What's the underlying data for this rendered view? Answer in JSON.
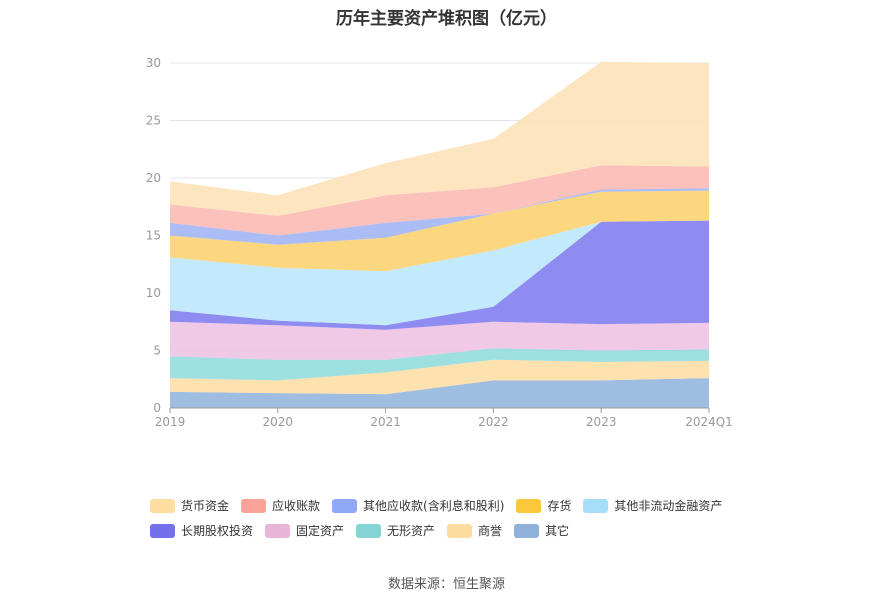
{
  "title": "历年主要资产堆积图（亿元）",
  "source": "数据来源：恒生聚源",
  "chart_data": {
    "type": "area",
    "stacked": true,
    "title": "历年主要资产堆积图（亿元）",
    "categories": [
      "2019",
      "2020",
      "2021",
      "2022",
      "2023",
      "2024Q1"
    ],
    "ylim": [
      0,
      30
    ],
    "y_ticks": [
      0,
      5,
      10,
      15,
      20,
      25,
      30
    ],
    "grid": true,
    "legend_position": "bottom",
    "series": [
      {
        "name": "其它",
        "color": "#8eb0dc",
        "values": [
          1.4,
          1.3,
          1.2,
          2.4,
          2.4,
          2.6
        ]
      },
      {
        "name": "商誉",
        "color": "#fddca0",
        "values": [
          1.2,
          1.1,
          1.9,
          1.8,
          1.6,
          1.5
        ]
      },
      {
        "name": "无形资产",
        "color": "#8dd9d9",
        "values": [
          1.9,
          1.8,
          1.1,
          1.0,
          1.0,
          1.0
        ]
      },
      {
        "name": "固定资产",
        "color": "#ecbfe0",
        "values": [
          3.0,
          3.0,
          2.6,
          2.3,
          2.3,
          2.3
        ]
      },
      {
        "name": "长期股权投资",
        "color": "#7b78ee",
        "values": [
          1.0,
          0.4,
          0.4,
          1.3,
          8.9,
          8.9
        ]
      },
      {
        "name": "其他非流动金融资产",
        "color": "#b9e6fb",
        "values": [
          4.6,
          4.6,
          4.7,
          4.9,
          0.0,
          0.0
        ]
      },
      {
        "name": "存货",
        "color": "#fdd068",
        "values": [
          1.9,
          2.0,
          2.9,
          3.2,
          2.6,
          2.6
        ]
      },
      {
        "name": "其他应收款(含利息和股利)",
        "color": "#9db2f5",
        "values": [
          1.1,
          0.8,
          1.3,
          0.0,
          0.2,
          0.2
        ]
      },
      {
        "name": "应收账款",
        "color": "#fdb6b0",
        "values": [
          1.6,
          1.7,
          2.4,
          2.3,
          2.1,
          1.9
        ]
      },
      {
        "name": "货币资金",
        "color": "#fde2b4",
        "values": [
          2.0,
          1.8,
          2.8,
          4.2,
          9.0,
          9.0
        ]
      }
    ]
  },
  "legend": {
    "rows": [
      [
        {
          "name": "货币资金",
          "color": "#fddda0"
        },
        {
          "name": "应收账款",
          "color": "#fca399"
        },
        {
          "name": "其他应收款(含利息和股利)",
          "color": "#8fa8f8"
        },
        {
          "name": "存货",
          "color": "#fdc73c"
        },
        {
          "name": "其他非流动金融资产",
          "color": "#a6ddf8"
        }
      ],
      [
        {
          "name": "长期股权投资",
          "color": "#7470ec"
        },
        {
          "name": "固定资产",
          "color": "#e8b5d8"
        },
        {
          "name": "无形资产",
          "color": "#86d4d4"
        },
        {
          "name": "商誉",
          "color": "#fddca0"
        },
        {
          "name": "其它",
          "color": "#8fb1da"
        }
      ]
    ]
  }
}
